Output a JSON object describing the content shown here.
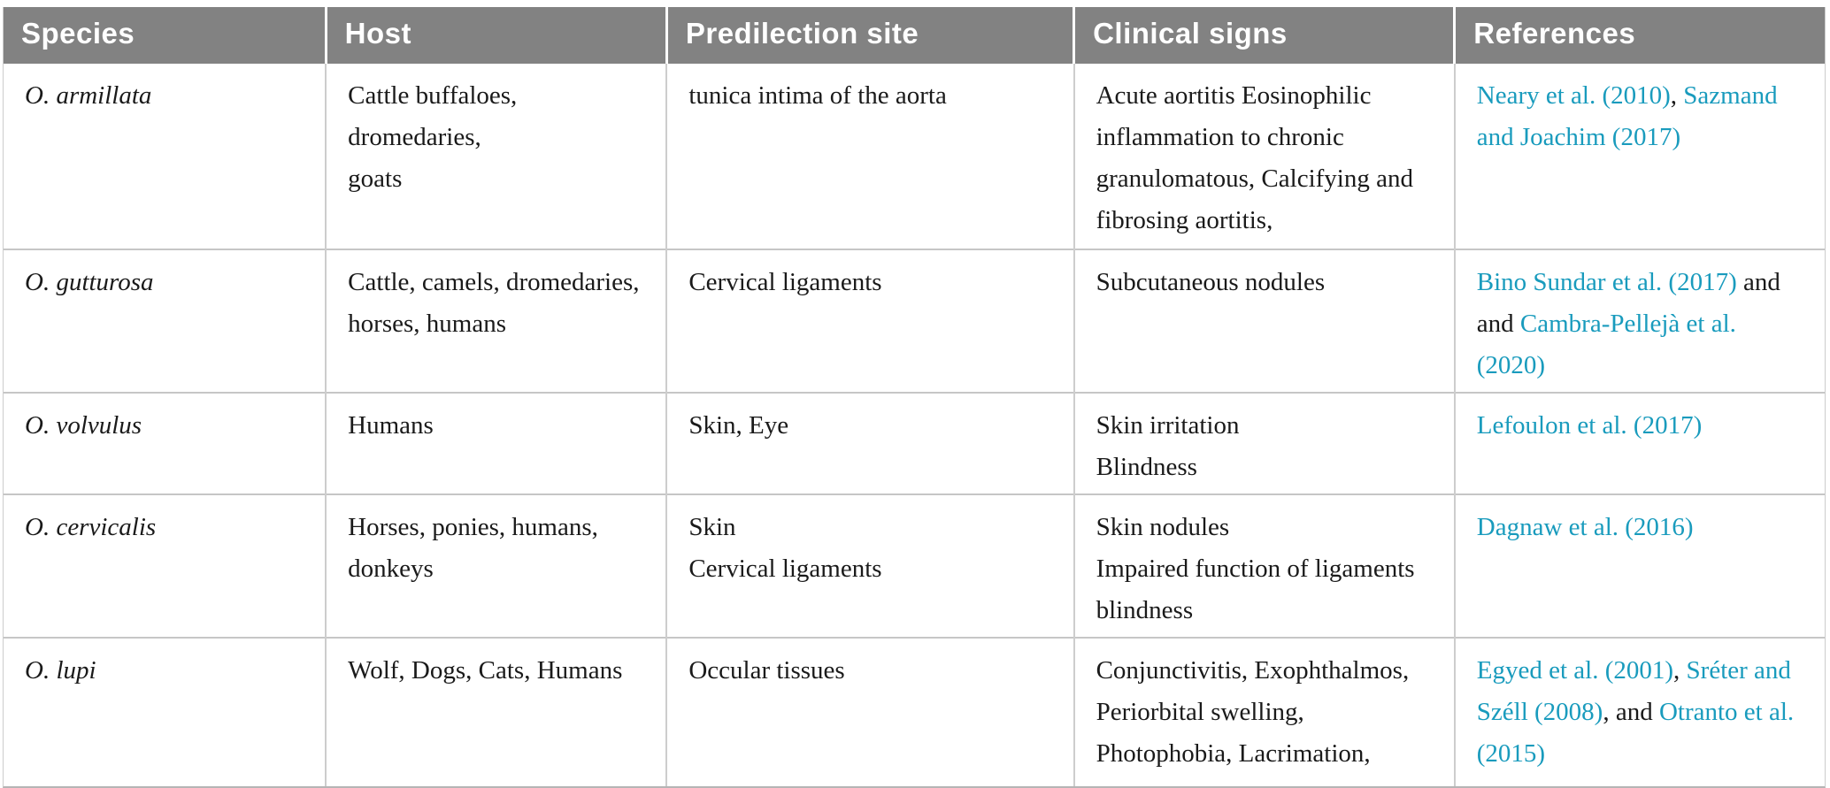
{
  "theme": {
    "header_bg": "#828282",
    "header_text": "#ffffff",
    "body_text": "#1a1a1a",
    "link_color": "#199bbd",
    "grid_line": "#cdcdcd"
  },
  "table": {
    "columns": [
      {
        "label": "Species"
      },
      {
        "label": "Host"
      },
      {
        "label": "Predilection site"
      },
      {
        "label": "Clinical signs"
      },
      {
        "label": "References"
      }
    ],
    "rows": [
      {
        "species": "O. armillata",
        "host": "Cattle buffaloes, dromedaries,\ngoats",
        "predilection_site": "tunica intima of the aorta",
        "clinical_signs": "Acute aortitis Eosinophilic\ninflammation to chronic\ngranulomatous, Calcifying and\nfibrosing aortitis,",
        "references": [
          {
            "text": "Neary et al. (2010)",
            "link": true
          },
          {
            "text": ", ",
            "link": false
          },
          {
            "text": "Sazmand\nand Joachim (2017)",
            "link": true
          }
        ]
      },
      {
        "species": "O. gutturosa",
        "host": "Cattle, camels, dromedaries,\nhorses, humans",
        "predilection_site": "Cervical ligaments",
        "clinical_signs": "Subcutaneous nodules",
        "references": [
          {
            "text": "Bino Sundar et al. (2017)",
            "link": true
          },
          {
            "text": " and\nand ",
            "link": false
          },
          {
            "text": "Cambra-Pellejà et al. (2020)",
            "link": true
          }
        ]
      },
      {
        "species": "O. volvulus",
        "host": "Humans",
        "predilection_site": "Skin, Eye",
        "clinical_signs": "Skin irritation\nBlindness",
        "references": [
          {
            "text": "Lefoulon et al. (2017)",
            "link": true
          }
        ]
      },
      {
        "species": "O. cervicalis",
        "host": "Horses, ponies, humans,\ndonkeys",
        "predilection_site": "Skin\nCervical ligaments",
        "clinical_signs": "Skin nodules\nImpaired function of ligaments\nblindness",
        "references": [
          {
            "text": "Dagnaw et al. (2016)",
            "link": true
          }
        ]
      },
      {
        "species": "O. lupi",
        "host": "Wolf, Dogs, Cats, Humans",
        "predilection_site": "Occular tissues",
        "clinical_signs": "Conjunctivitis, Exophthalmos,\nPeriorbital swelling,\nPhotophobia, Lacrimation,",
        "references": [
          {
            "text": "Egyed et al. (2001)",
            "link": true
          },
          {
            "text": ", ",
            "link": false
          },
          {
            "text": "Sréter and\nSzéll (2008)",
            "link": true
          },
          {
            "text": ", and ",
            "link": false
          },
          {
            "text": "Otranto et al.\n(2015)",
            "link": true
          }
        ]
      }
    ]
  }
}
